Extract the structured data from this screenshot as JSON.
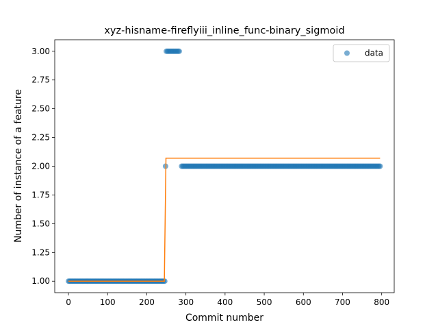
{
  "chart_data": {
    "type": "scatter",
    "title": "xyz-hisname-fireflyiii_inline_func-binary_sigmoid",
    "xlabel": "Commit number",
    "ylabel": "Number of instance of a feature",
    "xlim": [
      -35,
      832
    ],
    "ylim": [
      0.9,
      3.1
    ],
    "xticks": [
      0,
      100,
      200,
      300,
      400,
      500,
      600,
      700,
      800
    ],
    "yticks": [
      1.0,
      1.25,
      1.5,
      1.75,
      2.0,
      2.25,
      2.5,
      2.75,
      3.0
    ],
    "ytick_labels": [
      "1.00",
      "1.25",
      "1.50",
      "1.75",
      "2.00",
      "2.25",
      "2.50",
      "2.75",
      "3.00"
    ],
    "grid": false,
    "legend_position": "top-right",
    "series": [
      {
        "name": "data",
        "kind": "scatter",
        "color": "#1f77b4",
        "segments": [
          {
            "x_start": 0,
            "x_end": 246,
            "step": 3,
            "y": 1.0
          },
          {
            "x_start": 248,
            "x_end": 248,
            "step": 1,
            "y": 2.0
          },
          {
            "x_start": 250,
            "x_end": 285,
            "step": 3,
            "y": 3.0
          },
          {
            "x_start": 289,
            "x_end": 796,
            "step": 3,
            "y": 2.0
          }
        ]
      },
      {
        "kind": "line",
        "color": "#ff7f0e",
        "x": [
          0,
          245,
          245,
          249,
          249,
          796
        ],
        "y": [
          1.0,
          1.0,
          1.02,
          2.05,
          2.07,
          2.07
        ]
      }
    ]
  }
}
